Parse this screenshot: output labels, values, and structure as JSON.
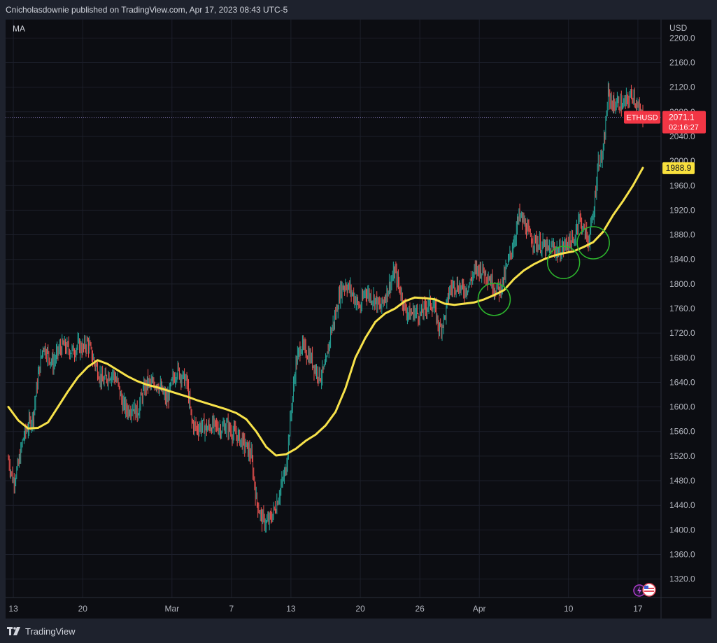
{
  "header": {
    "published_text": "Cnicholasdownie published on TradingView.com, Apr 17, 2023 08:43 UTC-5"
  },
  "footer": {
    "brand": "TradingView"
  },
  "colors": {
    "background": "#0c0d12",
    "frame": "#1e222d",
    "grid": "#1c1f2a",
    "up_candle": "#26a69a",
    "down_candle": "#ef5350",
    "ma_line": "#f7e24a",
    "ma_badge": "#f9e13d",
    "price_badge": "#f23645",
    "marker_circle": "#2db82d",
    "price_line": "#9b8bd8"
  },
  "chart_data": {
    "type": "line",
    "symbol": "ETHUSD",
    "indicator": "MA",
    "y_axis_unit": "USD",
    "ylim": [
      1290,
      2230
    ],
    "xlim": [
      "2023-02-12T12:00",
      "2023-04-17T12:00"
    ],
    "y_ticks": [
      1320.0,
      1360.0,
      1400.0,
      1440.0,
      1480.0,
      1520.0,
      1560.0,
      1600.0,
      1640.0,
      1680.0,
      1720.0,
      1760.0,
      1800.0,
      1840.0,
      1880.0,
      1920.0,
      1960.0,
      2000.0,
      2040.0,
      2080.0,
      2120.0,
      2160.0,
      2200.0
    ],
    "x_ticks": [
      {
        "label": "13",
        "date": "2023-02-13"
      },
      {
        "label": "20",
        "date": "2023-02-20"
      },
      {
        "label": "Mar",
        "date": "2023-03-01"
      },
      {
        "label": "7",
        "date": "2023-03-07"
      },
      {
        "label": "13",
        "date": "2023-03-13"
      },
      {
        "label": "20",
        "date": "2023-03-20"
      },
      {
        "label": "26",
        "date": "2023-03-26"
      },
      {
        "label": "Apr",
        "date": "2023-04-01"
      },
      {
        "label": "10",
        "date": "2023-04-10"
      },
      {
        "label": "17",
        "date": "2023-04-17"
      }
    ],
    "price_series": [
      {
        "date": "2023-02-12T12:00",
        "close": 1515
      },
      {
        "date": "2023-02-13T00:00",
        "close": 1478
      },
      {
        "date": "2023-02-13T12:00",
        "close": 1505
      },
      {
        "date": "2023-02-14T00:00",
        "close": 1550
      },
      {
        "date": "2023-02-14T12:00",
        "close": 1570
      },
      {
        "date": "2023-02-15T00:00",
        "close": 1585
      },
      {
        "date": "2023-02-15T12:00",
        "close": 1650
      },
      {
        "date": "2023-02-16T00:00",
        "close": 1700
      },
      {
        "date": "2023-02-16T12:00",
        "close": 1685
      },
      {
        "date": "2023-02-17T00:00",
        "close": 1670
      },
      {
        "date": "2023-02-17T12:00",
        "close": 1690
      },
      {
        "date": "2023-02-18T00:00",
        "close": 1700
      },
      {
        "date": "2023-02-18T12:00",
        "close": 1695
      },
      {
        "date": "2023-02-19T00:00",
        "close": 1690
      },
      {
        "date": "2023-02-19T12:00",
        "close": 1700
      },
      {
        "date": "2023-02-20T00:00",
        "close": 1695
      },
      {
        "date": "2023-02-20T12:00",
        "close": 1705
      },
      {
        "date": "2023-02-21T00:00",
        "close": 1680
      },
      {
        "date": "2023-02-21T12:00",
        "close": 1660
      },
      {
        "date": "2023-02-22T00:00",
        "close": 1640
      },
      {
        "date": "2023-02-22T12:00",
        "close": 1650
      },
      {
        "date": "2023-02-23T00:00",
        "close": 1655
      },
      {
        "date": "2023-02-23T12:00",
        "close": 1640
      },
      {
        "date": "2023-02-24T00:00",
        "close": 1605
      },
      {
        "date": "2023-02-24T12:00",
        "close": 1595
      },
      {
        "date": "2023-02-25T00:00",
        "close": 1600
      },
      {
        "date": "2023-02-25T12:00",
        "close": 1590
      },
      {
        "date": "2023-02-26T00:00",
        "close": 1620
      },
      {
        "date": "2023-02-26T12:00",
        "close": 1640
      },
      {
        "date": "2023-02-27T00:00",
        "close": 1635
      },
      {
        "date": "2023-02-27T12:00",
        "close": 1640
      },
      {
        "date": "2023-02-28T00:00",
        "close": 1625
      },
      {
        "date": "2023-02-28T12:00",
        "close": 1610
      },
      {
        "date": "2023-03-01T00:00",
        "close": 1640
      },
      {
        "date": "2023-03-01T12:00",
        "close": 1660
      },
      {
        "date": "2023-03-02T00:00",
        "close": 1650
      },
      {
        "date": "2023-03-02T12:00",
        "close": 1640
      },
      {
        "date": "2023-03-03T00:00",
        "close": 1575
      },
      {
        "date": "2023-03-03T12:00",
        "close": 1565
      },
      {
        "date": "2023-03-04T00:00",
        "close": 1570
      },
      {
        "date": "2023-03-04T12:00",
        "close": 1565
      },
      {
        "date": "2023-03-05T00:00",
        "close": 1570
      },
      {
        "date": "2023-03-05T12:00",
        "close": 1568
      },
      {
        "date": "2023-03-06T00:00",
        "close": 1565
      },
      {
        "date": "2023-03-06T12:00",
        "close": 1570
      },
      {
        "date": "2023-03-07T00:00",
        "close": 1560
      },
      {
        "date": "2023-03-07T12:00",
        "close": 1555
      },
      {
        "date": "2023-03-08T00:00",
        "close": 1545
      },
      {
        "date": "2023-03-08T12:00",
        "close": 1535
      },
      {
        "date": "2023-03-09T00:00",
        "close": 1520
      },
      {
        "date": "2023-03-09T12:00",
        "close": 1450
      },
      {
        "date": "2023-03-10T00:00",
        "close": 1420
      },
      {
        "date": "2023-03-10T12:00",
        "close": 1410
      },
      {
        "date": "2023-03-11T00:00",
        "close": 1420
      },
      {
        "date": "2023-03-11T12:00",
        "close": 1440
      },
      {
        "date": "2023-03-12T00:00",
        "close": 1470
      },
      {
        "date": "2023-03-12T12:00",
        "close": 1500
      },
      {
        "date": "2023-03-13T00:00",
        "close": 1590
      },
      {
        "date": "2023-03-13T12:00",
        "close": 1670
      },
      {
        "date": "2023-03-14T00:00",
        "close": 1700
      },
      {
        "date": "2023-03-14T12:00",
        "close": 1690
      },
      {
        "date": "2023-03-15T00:00",
        "close": 1680
      },
      {
        "date": "2023-03-15T12:00",
        "close": 1660
      },
      {
        "date": "2023-03-16T00:00",
        "close": 1650
      },
      {
        "date": "2023-03-16T12:00",
        "close": 1665
      },
      {
        "date": "2023-03-17T00:00",
        "close": 1720
      },
      {
        "date": "2023-03-17T12:00",
        "close": 1750
      },
      {
        "date": "2023-03-18T00:00",
        "close": 1790
      },
      {
        "date": "2023-03-18T12:00",
        "close": 1800
      },
      {
        "date": "2023-03-19T00:00",
        "close": 1790
      },
      {
        "date": "2023-03-19T12:00",
        "close": 1775
      },
      {
        "date": "2023-03-20T00:00",
        "close": 1760
      },
      {
        "date": "2023-03-20T12:00",
        "close": 1790
      },
      {
        "date": "2023-03-21T00:00",
        "close": 1780
      },
      {
        "date": "2023-03-21T12:00",
        "close": 1775
      },
      {
        "date": "2023-03-22T00:00",
        "close": 1760
      },
      {
        "date": "2023-03-22T12:00",
        "close": 1780
      },
      {
        "date": "2023-03-23T00:00",
        "close": 1800
      },
      {
        "date": "2023-03-23T12:00",
        "close": 1820
      },
      {
        "date": "2023-03-24T00:00",
        "close": 1790
      },
      {
        "date": "2023-03-24T12:00",
        "close": 1760
      },
      {
        "date": "2023-03-25T00:00",
        "close": 1750
      },
      {
        "date": "2023-03-25T12:00",
        "close": 1755
      },
      {
        "date": "2023-03-26T00:00",
        "close": 1750
      },
      {
        "date": "2023-03-26T12:00",
        "close": 1760
      },
      {
        "date": "2023-03-27T00:00",
        "close": 1770
      },
      {
        "date": "2023-03-27T12:00",
        "close": 1760
      },
      {
        "date": "2023-03-28T00:00",
        "close": 1725
      },
      {
        "date": "2023-03-28T12:00",
        "close": 1745
      },
      {
        "date": "2023-03-29T00:00",
        "close": 1790
      },
      {
        "date": "2023-03-29T12:00",
        "close": 1800
      },
      {
        "date": "2023-03-30T00:00",
        "close": 1795
      },
      {
        "date": "2023-03-30T12:00",
        "close": 1790
      },
      {
        "date": "2023-03-31T00:00",
        "close": 1800
      },
      {
        "date": "2023-03-31T12:00",
        "close": 1820
      },
      {
        "date": "2023-04-01T00:00",
        "close": 1825
      },
      {
        "date": "2023-04-01T12:00",
        "close": 1820
      },
      {
        "date": "2023-04-02T00:00",
        "close": 1810
      },
      {
        "date": "2023-04-02T12:00",
        "close": 1795
      },
      {
        "date": "2023-04-03T00:00",
        "close": 1790
      },
      {
        "date": "2023-04-03T12:00",
        "close": 1810
      },
      {
        "date": "2023-04-04T00:00",
        "close": 1840
      },
      {
        "date": "2023-04-04T12:00",
        "close": 1870
      },
      {
        "date": "2023-04-05T00:00",
        "close": 1910
      },
      {
        "date": "2023-04-05T12:00",
        "close": 1900
      },
      {
        "date": "2023-04-06T00:00",
        "close": 1880
      },
      {
        "date": "2023-04-06T12:00",
        "close": 1870
      },
      {
        "date": "2023-04-07T00:00",
        "close": 1865
      },
      {
        "date": "2023-04-07T12:00",
        "close": 1860
      },
      {
        "date": "2023-04-08T00:00",
        "close": 1855
      },
      {
        "date": "2023-04-08T12:00",
        "close": 1860
      },
      {
        "date": "2023-04-09T00:00",
        "close": 1850
      },
      {
        "date": "2023-04-09T12:00",
        "close": 1860
      },
      {
        "date": "2023-04-10T00:00",
        "close": 1870
      },
      {
        "date": "2023-04-10T12:00",
        "close": 1865
      },
      {
        "date": "2023-04-11T00:00",
        "close": 1910
      },
      {
        "date": "2023-04-11T12:00",
        "close": 1890
      },
      {
        "date": "2023-04-12T00:00",
        "close": 1870
      },
      {
        "date": "2023-04-12T12:00",
        "close": 1910
      },
      {
        "date": "2023-04-13T00:00",
        "close": 2000
      },
      {
        "date": "2023-04-13T12:00",
        "close": 2010
      },
      {
        "date": "2023-04-14T00:00",
        "close": 2110
      },
      {
        "date": "2023-04-14T12:00",
        "close": 2090
      },
      {
        "date": "2023-04-15T00:00",
        "close": 2095
      },
      {
        "date": "2023-04-15T12:00",
        "close": 2090
      },
      {
        "date": "2023-04-16T00:00",
        "close": 2100
      },
      {
        "date": "2023-04-16T12:00",
        "close": 2110
      },
      {
        "date": "2023-04-17T00:00",
        "close": 2085
      },
      {
        "date": "2023-04-17T12:00",
        "close": 2071
      }
    ],
    "ma_series": [
      {
        "date": "2023-02-12T12:00",
        "value": 1600
      },
      {
        "date": "2023-02-13T12:00",
        "value": 1578
      },
      {
        "date": "2023-02-14T12:00",
        "value": 1565
      },
      {
        "date": "2023-02-15T12:00",
        "value": 1566
      },
      {
        "date": "2023-02-16T12:00",
        "value": 1575
      },
      {
        "date": "2023-02-17T12:00",
        "value": 1600
      },
      {
        "date": "2023-02-18T12:00",
        "value": 1625
      },
      {
        "date": "2023-02-19T12:00",
        "value": 1648
      },
      {
        "date": "2023-02-20T12:00",
        "value": 1665
      },
      {
        "date": "2023-02-21T12:00",
        "value": 1676
      },
      {
        "date": "2023-02-22T12:00",
        "value": 1670
      },
      {
        "date": "2023-02-23T12:00",
        "value": 1660
      },
      {
        "date": "2023-02-24T12:00",
        "value": 1650
      },
      {
        "date": "2023-02-25T12:00",
        "value": 1642
      },
      {
        "date": "2023-02-26T12:00",
        "value": 1636
      },
      {
        "date": "2023-02-27T12:00",
        "value": 1632
      },
      {
        "date": "2023-02-28T12:00",
        "value": 1627
      },
      {
        "date": "2023-03-01T12:00",
        "value": 1622
      },
      {
        "date": "2023-03-02T12:00",
        "value": 1617
      },
      {
        "date": "2023-03-03T12:00",
        "value": 1611
      },
      {
        "date": "2023-03-04T12:00",
        "value": 1606
      },
      {
        "date": "2023-03-05T12:00",
        "value": 1601
      },
      {
        "date": "2023-03-06T12:00",
        "value": 1596
      },
      {
        "date": "2023-03-07T12:00",
        "value": 1590
      },
      {
        "date": "2023-03-08T12:00",
        "value": 1580
      },
      {
        "date": "2023-03-09T12:00",
        "value": 1560
      },
      {
        "date": "2023-03-10T12:00",
        "value": 1535
      },
      {
        "date": "2023-03-11T12:00",
        "value": 1521
      },
      {
        "date": "2023-03-12T12:00",
        "value": 1523
      },
      {
        "date": "2023-03-13T12:00",
        "value": 1532
      },
      {
        "date": "2023-03-14T12:00",
        "value": 1545
      },
      {
        "date": "2023-03-15T12:00",
        "value": 1555
      },
      {
        "date": "2023-03-16T12:00",
        "value": 1570
      },
      {
        "date": "2023-03-17T12:00",
        "value": 1592
      },
      {
        "date": "2023-03-18T12:00",
        "value": 1630
      },
      {
        "date": "2023-03-19T12:00",
        "value": 1680
      },
      {
        "date": "2023-03-20T12:00",
        "value": 1712
      },
      {
        "date": "2023-03-21T12:00",
        "value": 1738
      },
      {
        "date": "2023-03-22T12:00",
        "value": 1752
      },
      {
        "date": "2023-03-23T12:00",
        "value": 1760
      },
      {
        "date": "2023-03-24T12:00",
        "value": 1772
      },
      {
        "date": "2023-03-25T12:00",
        "value": 1778
      },
      {
        "date": "2023-03-26T12:00",
        "value": 1777
      },
      {
        "date": "2023-03-27T12:00",
        "value": 1775
      },
      {
        "date": "2023-03-28T12:00",
        "value": 1768
      },
      {
        "date": "2023-03-29T12:00",
        "value": 1766
      },
      {
        "date": "2023-03-30T12:00",
        "value": 1768
      },
      {
        "date": "2023-03-31T12:00",
        "value": 1770
      },
      {
        "date": "2023-04-01T12:00",
        "value": 1775
      },
      {
        "date": "2023-04-02T12:00",
        "value": 1782
      },
      {
        "date": "2023-04-03T12:00",
        "value": 1790
      },
      {
        "date": "2023-04-04T12:00",
        "value": 1808
      },
      {
        "date": "2023-04-05T12:00",
        "value": 1822
      },
      {
        "date": "2023-04-06T12:00",
        "value": 1832
      },
      {
        "date": "2023-04-07T12:00",
        "value": 1840
      },
      {
        "date": "2023-04-08T12:00",
        "value": 1846
      },
      {
        "date": "2023-04-09T12:00",
        "value": 1850
      },
      {
        "date": "2023-04-10T12:00",
        "value": 1853
      },
      {
        "date": "2023-04-11T12:00",
        "value": 1860
      },
      {
        "date": "2023-04-12T12:00",
        "value": 1868
      },
      {
        "date": "2023-04-13T12:00",
        "value": 1885
      },
      {
        "date": "2023-04-14T12:00",
        "value": 1912
      },
      {
        "date": "2023-04-15T12:00",
        "value": 1935
      },
      {
        "date": "2023-04-16T12:00",
        "value": 1960
      },
      {
        "date": "2023-04-17T12:00",
        "value": 1988.9
      }
    ],
    "annotations": [
      {
        "type": "circle",
        "date": "2023-04-02T12:00",
        "price": 1775
      },
      {
        "type": "circle",
        "date": "2023-04-09T12:00",
        "price": 1835
      },
      {
        "type": "circle",
        "date": "2023-04-12T12:00",
        "price": 1867
      }
    ],
    "last_price": {
      "label": "ETHUSD",
      "value": "2071.1",
      "countdown": "02:16:27",
      "price": 2071.1
    },
    "ma_last": {
      "value": "1988.9",
      "price": 1988.9
    }
  }
}
